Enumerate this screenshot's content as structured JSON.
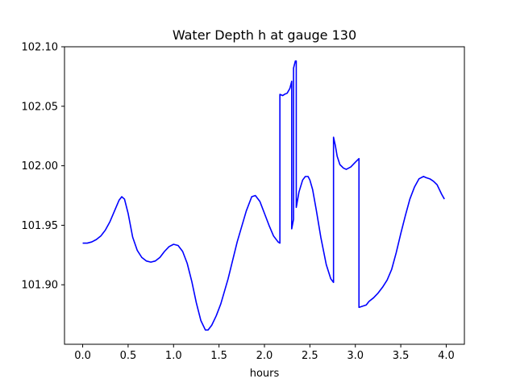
{
  "chart_data": {
    "type": "line",
    "title": "Water Depth h at gauge 130",
    "xlabel": "hours",
    "ylabel": "",
    "xlim": [
      -0.2,
      4.2
    ],
    "ylim": [
      101.85,
      102.1
    ],
    "xticks": [
      0.0,
      0.5,
      1.0,
      1.5,
      2.0,
      2.5,
      3.0,
      3.5,
      4.0
    ],
    "xtick_labels": [
      "0.0",
      "0.5",
      "1.0",
      "1.5",
      "2.0",
      "2.5",
      "3.0",
      "3.5",
      "4.0"
    ],
    "yticks": [
      101.9,
      101.95,
      102.0,
      102.05,
      102.1
    ],
    "ytick_labels": [
      "101.90",
      "101.95",
      "102.00",
      "102.05",
      "102.10"
    ],
    "grid": false,
    "series": [
      {
        "color": "#0000ff",
        "x": [
          0.0,
          0.05,
          0.1,
          0.15,
          0.2,
          0.25,
          0.3,
          0.35,
          0.4,
          0.43,
          0.46,
          0.5,
          0.55,
          0.6,
          0.65,
          0.7,
          0.75,
          0.8,
          0.85,
          0.9,
          0.95,
          1.0,
          1.05,
          1.1,
          1.15,
          1.2,
          1.25,
          1.3,
          1.35,
          1.38,
          1.42,
          1.47,
          1.52,
          1.6,
          1.7,
          1.8,
          1.86,
          1.9,
          1.95,
          2.0,
          2.05,
          2.1,
          2.15,
          2.17,
          2.17,
          2.2,
          2.22,
          2.25,
          2.28,
          2.3,
          2.3,
          2.32,
          2.32,
          2.34,
          2.35,
          2.35,
          2.38,
          2.42,
          2.45,
          2.48,
          2.5,
          2.53,
          2.57,
          2.62,
          2.68,
          2.73,
          2.76,
          2.76,
          2.78,
          2.8,
          2.83,
          2.87,
          2.9,
          2.95,
          3.0,
          3.04,
          3.04,
          3.08,
          3.12,
          3.15,
          3.2,
          3.25,
          3.3,
          3.35,
          3.4,
          3.45,
          3.5,
          3.55,
          3.6,
          3.65,
          3.7,
          3.75,
          3.78,
          3.82,
          3.86,
          3.9,
          3.95,
          3.98
        ],
        "y": [
          101.935,
          101.935,
          101.936,
          101.938,
          101.941,
          101.946,
          101.953,
          101.962,
          101.971,
          101.974,
          101.972,
          101.96,
          101.94,
          101.929,
          101.923,
          101.92,
          101.919,
          101.92,
          101.923,
          101.928,
          101.932,
          101.934,
          101.933,
          101.928,
          101.918,
          101.903,
          101.885,
          101.87,
          101.862,
          101.862,
          101.866,
          101.874,
          101.884,
          101.905,
          101.936,
          101.962,
          101.974,
          101.975,
          101.97,
          101.96,
          101.95,
          101.941,
          101.936,
          101.935,
          102.06,
          102.059,
          102.06,
          102.061,
          102.065,
          102.071,
          101.947,
          101.955,
          102.082,
          102.088,
          102.088,
          101.965,
          101.978,
          101.988,
          101.991,
          101.991,
          101.988,
          101.98,
          101.963,
          101.94,
          101.917,
          101.905,
          101.902,
          102.024,
          102.017,
          102.008,
          102.001,
          101.998,
          101.997,
          101.999,
          102.003,
          102.006,
          101.881,
          101.882,
          101.883,
          101.886,
          101.889,
          101.893,
          101.898,
          101.904,
          101.913,
          101.927,
          101.943,
          101.958,
          101.972,
          101.982,
          101.989,
          101.991,
          101.99,
          101.989,
          101.987,
          101.984,
          101.976,
          101.972
        ]
      }
    ]
  }
}
